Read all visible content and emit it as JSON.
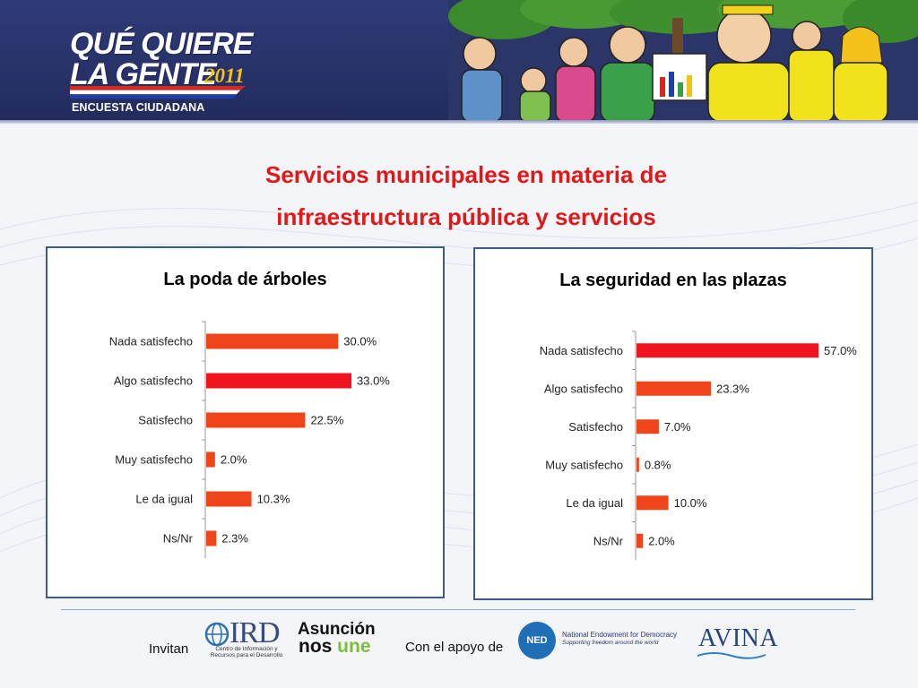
{
  "header": {
    "logo_line1": "QUÉ QUIERE",
    "logo_line2": "LA GENTE",
    "logo_year": "2011",
    "logo_subtitle": "ENCUESTA CIUDADANA"
  },
  "title": {
    "line1": "Servicios municipales en materia de",
    "line2": "infraestructura pública y servicios"
  },
  "colors": {
    "title_red": "#e11818",
    "bar": "#f0441a",
    "bar_highlight": "#f0141e",
    "panel_border": "#3d5c84",
    "banner": "#2a346d"
  },
  "chart_data": [
    {
      "type": "bar",
      "orientation": "horizontal",
      "title": "La poda de árboles",
      "categories": [
        "Nada satisfecho",
        "Algo satisfecho",
        "Satisfecho",
        "Muy satisfecho",
        "Le da igual",
        "Ns/Nr"
      ],
      "values": [
        30.0,
        33.0,
        22.5,
        2.0,
        10.3,
        2.3
      ],
      "value_labels": [
        "30.0%",
        "33.0%",
        "22.5%",
        "2.0%",
        "10.3%",
        "2.3%"
      ],
      "highlight_index": 1,
      "xlim": [
        0,
        33
      ],
      "grid": false,
      "legend": "none"
    },
    {
      "type": "bar",
      "orientation": "horizontal",
      "title": "La seguridad en las plazas",
      "categories": [
        "Nada satisfecho",
        "Algo satisfecho",
        "Satisfecho",
        "Muy satisfecho",
        "Le da igual",
        "Ns/Nr"
      ],
      "values": [
        57.0,
        23.3,
        7.0,
        0.8,
        10.0,
        2.0
      ],
      "value_labels": [
        "57.0%",
        "23.3%",
        "7.0%",
        "0.8%",
        "10.0%",
        "2.0%"
      ],
      "highlight_index": 0,
      "xlim": [
        0,
        57
      ],
      "grid": false,
      "legend": "none"
    }
  ],
  "footer": {
    "invitan": "Invitan",
    "apoyo": "Con el apoyo de",
    "ird_name": "IRD",
    "ird_subtitle": "Centro de Información y Recursos para el Desarrollo",
    "asuncion_line1": "Asunción",
    "asuncion_line2_a": "nos ",
    "asuncion_line2_b": "une",
    "ned_abbr": "NED",
    "ned_name": "National Endowment for Democracy",
    "ned_tagline": "Supporting freedom around the world",
    "avina": "AVINA"
  },
  "icons": [
    "ird-globe-icon",
    "ned-circle-icon",
    "avina-wave-icon",
    "cartoon-crowd-illustration",
    "paraguay-flag-stripe"
  ]
}
